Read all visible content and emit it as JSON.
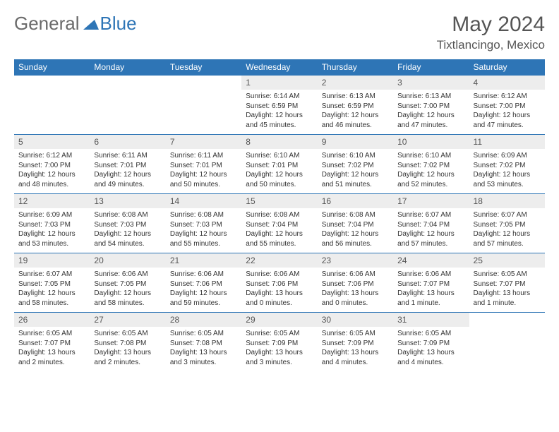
{
  "logo": {
    "part1": "General",
    "part2": "Blue",
    "icon_color": "#2e75b6"
  },
  "title": "May 2024",
  "location": "Tixtlancingo, Mexico",
  "colors": {
    "header_bg": "#2e75b6",
    "header_fg": "#ffffff",
    "daynum_bg": "#ededed",
    "text": "#333333",
    "title_text": "#555555"
  },
  "day_headers": [
    "Sunday",
    "Monday",
    "Tuesday",
    "Wednesday",
    "Thursday",
    "Friday",
    "Saturday"
  ],
  "weeks": [
    [
      null,
      null,
      null,
      {
        "n": "1",
        "sr": "6:14 AM",
        "ss": "6:59 PM",
        "dl": "12 hours and 45 minutes."
      },
      {
        "n": "2",
        "sr": "6:13 AM",
        "ss": "6:59 PM",
        "dl": "12 hours and 46 minutes."
      },
      {
        "n": "3",
        "sr": "6:13 AM",
        "ss": "7:00 PM",
        "dl": "12 hours and 47 minutes."
      },
      {
        "n": "4",
        "sr": "6:12 AM",
        "ss": "7:00 PM",
        "dl": "12 hours and 47 minutes."
      }
    ],
    [
      {
        "n": "5",
        "sr": "6:12 AM",
        "ss": "7:00 PM",
        "dl": "12 hours and 48 minutes."
      },
      {
        "n": "6",
        "sr": "6:11 AM",
        "ss": "7:01 PM",
        "dl": "12 hours and 49 minutes."
      },
      {
        "n": "7",
        "sr": "6:11 AM",
        "ss": "7:01 PM",
        "dl": "12 hours and 50 minutes."
      },
      {
        "n": "8",
        "sr": "6:10 AM",
        "ss": "7:01 PM",
        "dl": "12 hours and 50 minutes."
      },
      {
        "n": "9",
        "sr": "6:10 AM",
        "ss": "7:02 PM",
        "dl": "12 hours and 51 minutes."
      },
      {
        "n": "10",
        "sr": "6:10 AM",
        "ss": "7:02 PM",
        "dl": "12 hours and 52 minutes."
      },
      {
        "n": "11",
        "sr": "6:09 AM",
        "ss": "7:02 PM",
        "dl": "12 hours and 53 minutes."
      }
    ],
    [
      {
        "n": "12",
        "sr": "6:09 AM",
        "ss": "7:03 PM",
        "dl": "12 hours and 53 minutes."
      },
      {
        "n": "13",
        "sr": "6:08 AM",
        "ss": "7:03 PM",
        "dl": "12 hours and 54 minutes."
      },
      {
        "n": "14",
        "sr": "6:08 AM",
        "ss": "7:03 PM",
        "dl": "12 hours and 55 minutes."
      },
      {
        "n": "15",
        "sr": "6:08 AM",
        "ss": "7:04 PM",
        "dl": "12 hours and 55 minutes."
      },
      {
        "n": "16",
        "sr": "6:08 AM",
        "ss": "7:04 PM",
        "dl": "12 hours and 56 minutes."
      },
      {
        "n": "17",
        "sr": "6:07 AM",
        "ss": "7:04 PM",
        "dl": "12 hours and 57 minutes."
      },
      {
        "n": "18",
        "sr": "6:07 AM",
        "ss": "7:05 PM",
        "dl": "12 hours and 57 minutes."
      }
    ],
    [
      {
        "n": "19",
        "sr": "6:07 AM",
        "ss": "7:05 PM",
        "dl": "12 hours and 58 minutes."
      },
      {
        "n": "20",
        "sr": "6:06 AM",
        "ss": "7:05 PM",
        "dl": "12 hours and 58 minutes."
      },
      {
        "n": "21",
        "sr": "6:06 AM",
        "ss": "7:06 PM",
        "dl": "12 hours and 59 minutes."
      },
      {
        "n": "22",
        "sr": "6:06 AM",
        "ss": "7:06 PM",
        "dl": "13 hours and 0 minutes."
      },
      {
        "n": "23",
        "sr": "6:06 AM",
        "ss": "7:06 PM",
        "dl": "13 hours and 0 minutes."
      },
      {
        "n": "24",
        "sr": "6:06 AM",
        "ss": "7:07 PM",
        "dl": "13 hours and 1 minute."
      },
      {
        "n": "25",
        "sr": "6:05 AM",
        "ss": "7:07 PM",
        "dl": "13 hours and 1 minute."
      }
    ],
    [
      {
        "n": "26",
        "sr": "6:05 AM",
        "ss": "7:07 PM",
        "dl": "13 hours and 2 minutes."
      },
      {
        "n": "27",
        "sr": "6:05 AM",
        "ss": "7:08 PM",
        "dl": "13 hours and 2 minutes."
      },
      {
        "n": "28",
        "sr": "6:05 AM",
        "ss": "7:08 PM",
        "dl": "13 hours and 3 minutes."
      },
      {
        "n": "29",
        "sr": "6:05 AM",
        "ss": "7:09 PM",
        "dl": "13 hours and 3 minutes."
      },
      {
        "n": "30",
        "sr": "6:05 AM",
        "ss": "7:09 PM",
        "dl": "13 hours and 4 minutes."
      },
      {
        "n": "31",
        "sr": "6:05 AM",
        "ss": "7:09 PM",
        "dl": "13 hours and 4 minutes."
      },
      null
    ]
  ],
  "labels": {
    "sunrise": "Sunrise: ",
    "sunset": "Sunset: ",
    "daylight": "Daylight: "
  }
}
